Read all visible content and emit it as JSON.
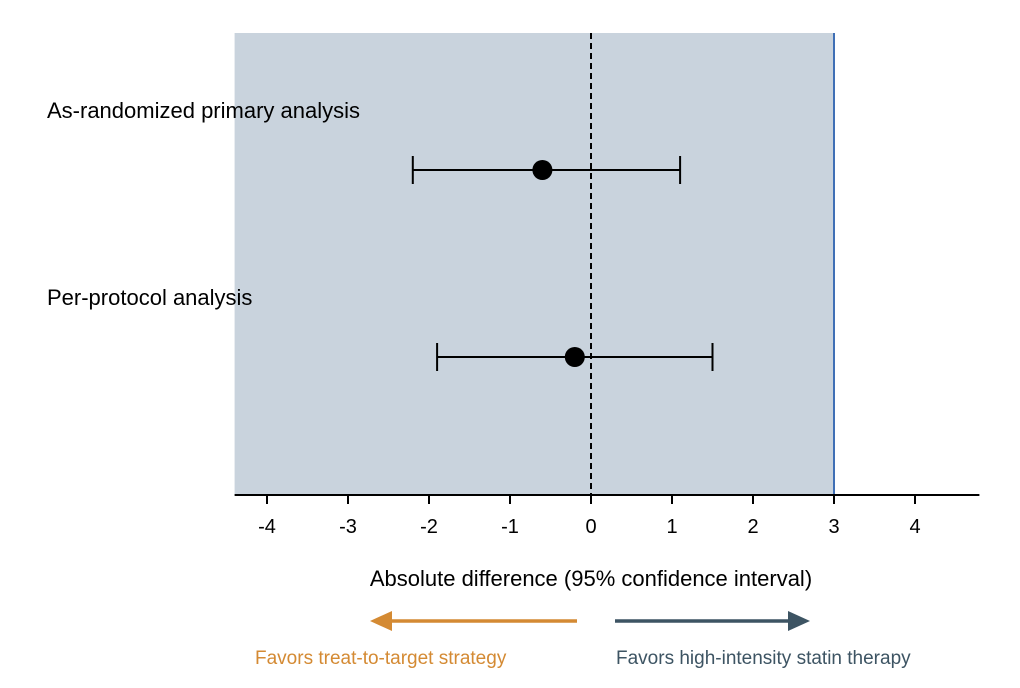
{
  "chart_data": {
    "type": "forest",
    "title": "",
    "xlabel": "Absolute difference (95% confidence interval)",
    "xlim": [
      -4.4,
      4.4
    ],
    "xticks": [
      -4,
      -3,
      -2,
      -1,
      0,
      1,
      2,
      3,
      4
    ],
    "xtick_labels": [
      "-4",
      "-3",
      "-2",
      "-1",
      "0",
      "1",
      "2",
      "3",
      "4"
    ],
    "reference_line": 0,
    "non_inferiority_margin": 3,
    "shaded_region": [
      -4.4,
      3
    ],
    "rows": [
      {
        "label": "As-randomized primary analysis",
        "estimate": -0.6,
        "ci_low": -2.2,
        "ci_high": 1.1
      },
      {
        "label": "Per-protocol analysis",
        "estimate": -0.2,
        "ci_low": -1.9,
        "ci_high": 1.5
      }
    ],
    "favors": {
      "left": {
        "label": "Favors treat-to-target strategy",
        "color": "#d48a33"
      },
      "right": {
        "label": "Favors high-intensity statin therapy",
        "color": "#3d5463"
      }
    },
    "colors": {
      "shade": "#c9d3dd",
      "margin_line": "#3f6fb5",
      "marks": "#000000"
    }
  }
}
